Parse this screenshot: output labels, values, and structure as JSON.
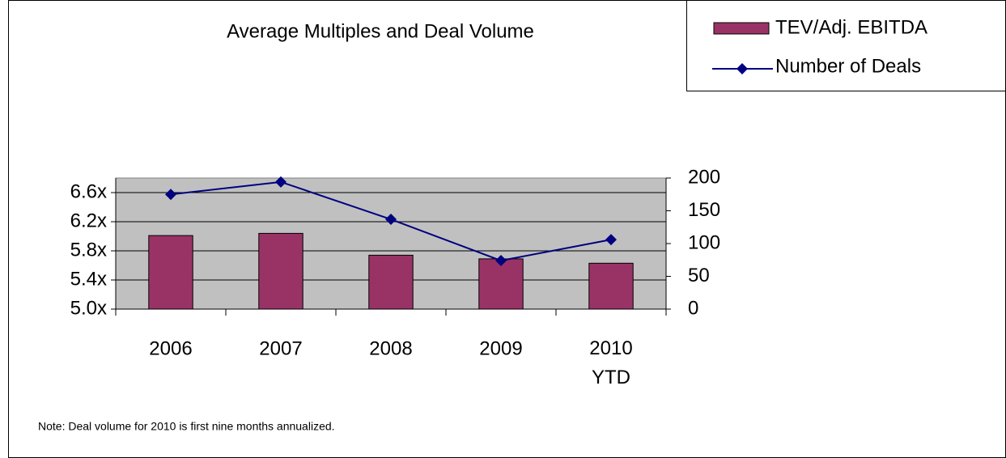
{
  "chart_data": {
    "type": "combo",
    "title": "Average Multiples and Deal Volume",
    "note": "Note: Deal volume for 2010 is first nine months annualized.",
    "categories": [
      "2006",
      "2007",
      "2008",
      "2009",
      "2010 YTD"
    ],
    "series": [
      {
        "name": "TEV/Adj. EBITDA",
        "type": "bar",
        "color": "#993366",
        "axis": "y",
        "values": [
          6.01,
          6.04,
          5.74,
          5.69,
          5.63
        ]
      },
      {
        "name": "Number of Deals",
        "type": "line",
        "color": "#000080",
        "axis": "y2",
        "values": [
          175,
          194,
          137,
          74,
          106
        ]
      }
    ],
    "ylim": [
      5.0,
      6.8
    ],
    "yticks": [
      {
        "value": 5.0,
        "label": "5.0x"
      },
      {
        "value": 5.4,
        "label": "5.4x"
      },
      {
        "value": 5.8,
        "label": "5.8x"
      },
      {
        "value": 6.2,
        "label": "6.2x"
      },
      {
        "value": 6.6,
        "label": "6.6x"
      }
    ],
    "y2lim": [
      0,
      200
    ],
    "y2ticks": [
      0,
      50,
      100,
      150,
      200
    ],
    "grid": true,
    "legend": "top-right",
    "plot_background": "#c0c0c0"
  }
}
